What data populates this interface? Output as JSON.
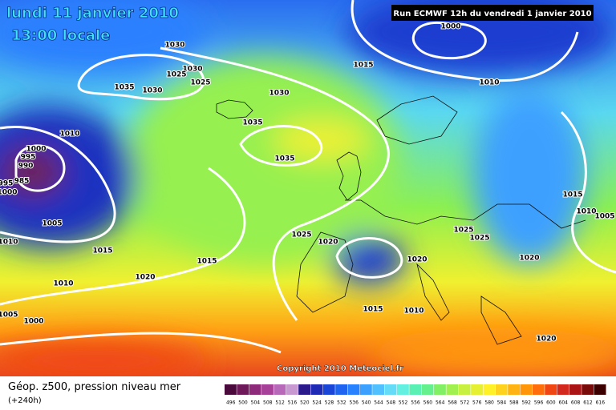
{
  "header": {
    "date": "lundi 11 janvier 2010",
    "time": "13:00 locale",
    "run": "Run ECMWF 12h du vendredi 1 janvier 2010"
  },
  "isobar_labels": [
    "1030",
    "1030",
    "1025",
    "1035",
    "1030",
    "1025",
    "1030",
    "1035",
    "1035",
    "1015",
    "1000",
    "1010",
    "1010",
    "1000",
    "995",
    "990",
    "985",
    "995",
    "1000",
    "1005",
    "1010",
    "1015",
    "1015",
    "1020",
    "1025",
    "1020",
    "1025",
    "1025",
    "1020",
    "1020",
    "1015",
    "1010",
    "1005",
    "1010",
    "1005",
    "1000",
    "1015",
    "1010",
    "1020"
  ],
  "copyright": "Copyright 2010 Meteociel.fr",
  "footer": {
    "title": "Géop. z500, pression niveau mer",
    "lead": "(+240h)"
  },
  "legend": {
    "values": [
      496,
      500,
      504,
      508,
      512,
      516,
      520,
      524,
      528,
      532,
      536,
      540,
      544,
      548,
      552,
      556,
      560,
      564,
      568,
      572,
      576,
      580,
      584,
      588,
      592,
      596,
      600,
      604,
      608,
      612,
      616
    ],
    "colors": [
      "#4b0a3c",
      "#6e1a5a",
      "#8e2a7a",
      "#a64098",
      "#b868b8",
      "#c898d0",
      "#2a1a8c",
      "#1e2ab4",
      "#1a46d8",
      "#1e64f0",
      "#2882ff",
      "#3ca0ff",
      "#50c0ff",
      "#64dcf8",
      "#64f0e0",
      "#5af0b4",
      "#64f08c",
      "#82f064",
      "#a0f050",
      "#c8f040",
      "#e6f032",
      "#fff028",
      "#ffd21e",
      "#ffb414",
      "#ff960a",
      "#ff6e0a",
      "#f04614",
      "#d2281e",
      "#aa1414",
      "#780a0a",
      "#3c0000"
    ]
  }
}
